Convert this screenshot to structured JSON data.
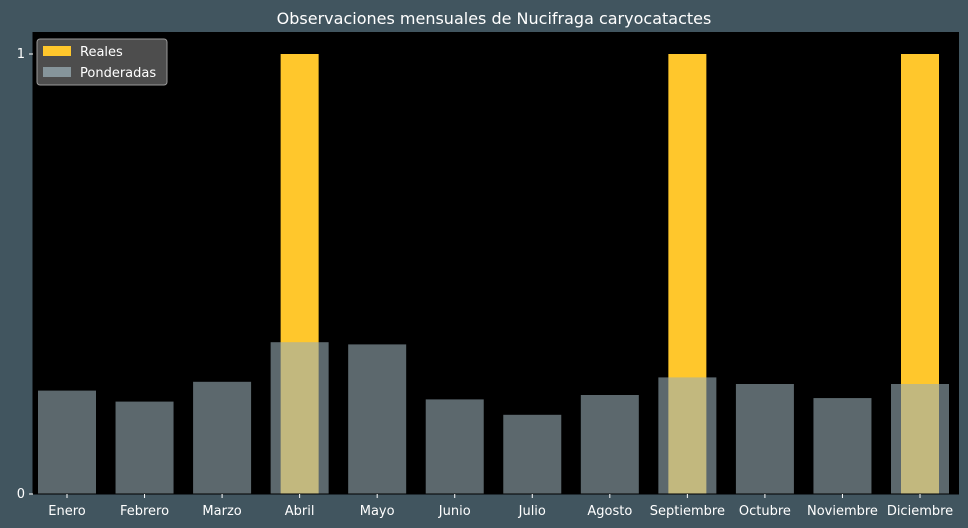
{
  "colors": {
    "page_bg": "#41555f",
    "plot_bg": "#000000",
    "real_bar": "#ffc72c",
    "weighted_bar": "#99adb5",
    "text": "#ffffff",
    "legend_bg": "#555555"
  },
  "chart_data": {
    "type": "bar",
    "title": "Observaciones mensuales de Nucifraga caryocatactes",
    "xlabel": "",
    "ylabel": "",
    "ylim": [
      0,
      1.05
    ],
    "yticks": [
      0,
      1
    ],
    "ytick_labels": [
      "0",
      "1"
    ],
    "grid": false,
    "legend_position": "top-left",
    "categories": [
      "Enero",
      "Febrero",
      "Marzo",
      "Abril",
      "Mayo",
      "Junio",
      "Julio",
      "Agosto",
      "Septiembre",
      "Octubre",
      "Noviembre",
      "Diciembre"
    ],
    "series": [
      {
        "name": "Reales",
        "color": "#ffc72c",
        "values": [
          0,
          0,
          0,
          1,
          0,
          0,
          0,
          0,
          1,
          0,
          0,
          1
        ]
      },
      {
        "name": "Ponderadas",
        "color": "#99adb5",
        "values": [
          0.235,
          0.21,
          0.255,
          0.345,
          0.34,
          0.215,
          0.18,
          0.225,
          0.265,
          0.25,
          0.218,
          0.25
        ]
      }
    ]
  }
}
